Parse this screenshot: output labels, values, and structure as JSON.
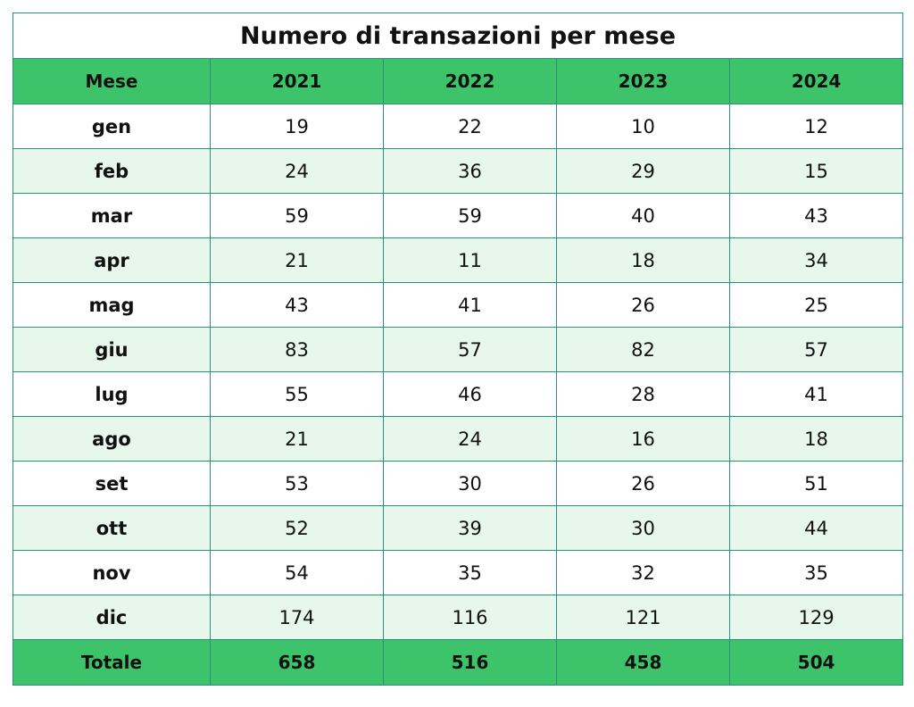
{
  "chart_data": {
    "type": "table",
    "title": "Numero di transazioni per mese",
    "columns": [
      "Mese",
      "2021",
      "2022",
      "2023",
      "2024"
    ],
    "rows": [
      {
        "month": "gen",
        "values": [
          19,
          22,
          10,
          12
        ]
      },
      {
        "month": "feb",
        "values": [
          24,
          36,
          29,
          15
        ]
      },
      {
        "month": "mar",
        "values": [
          59,
          59,
          40,
          43
        ]
      },
      {
        "month": "apr",
        "values": [
          21,
          11,
          18,
          34
        ]
      },
      {
        "month": "mag",
        "values": [
          43,
          41,
          26,
          25
        ]
      },
      {
        "month": "giu",
        "values": [
          83,
          57,
          82,
          57
        ]
      },
      {
        "month": "lug",
        "values": [
          55,
          46,
          28,
          41
        ]
      },
      {
        "month": "ago",
        "values": [
          21,
          24,
          16,
          18
        ]
      },
      {
        "month": "set",
        "values": [
          53,
          30,
          26,
          51
        ]
      },
      {
        "month": "ott",
        "values": [
          52,
          39,
          30,
          44
        ]
      },
      {
        "month": "nov",
        "values": [
          54,
          35,
          32,
          35
        ]
      },
      {
        "month": "dic",
        "values": [
          174,
          116,
          121,
          129
        ]
      }
    ],
    "total": {
      "label": "Totale",
      "values": [
        658,
        516,
        458,
        504
      ]
    }
  },
  "colors": {
    "header_bg": "#3dc46b",
    "stripe_bg": "#e8f7ec",
    "border": "#2b8f7d"
  }
}
